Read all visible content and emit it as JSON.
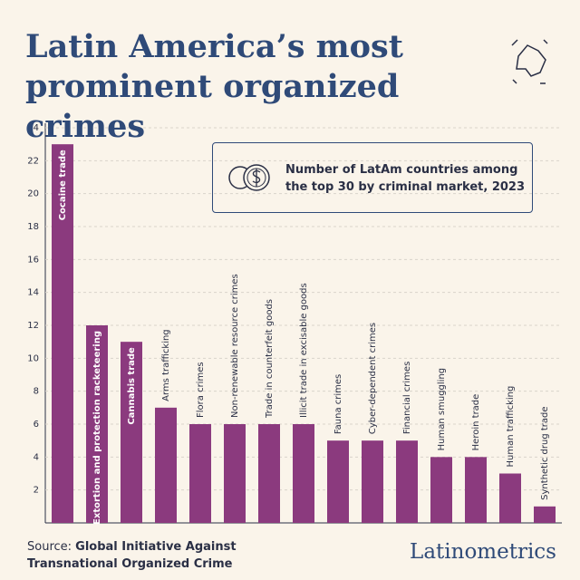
{
  "chart_data": {
    "type": "bar",
    "title": "Latin America’s most prominent organized crimes",
    "legend_text": "Number of LatAm countries among the top 30 by criminal market, 2023",
    "categories": [
      "Cocaine trade",
      "Extortion and protection racketeering",
      "Cannabis trade",
      "Arms trafficking",
      "Flora crimes",
      "Non-renewable resource crimes",
      "Trade in counterfeit goods",
      "Illicit trade in excisable goods",
      "Fauna crimes",
      "Cyber-dependent crimes",
      "Financial crimes",
      "Human smuggling",
      "Heroin trade",
      "Human trafficking",
      "Synthetic drug trade"
    ],
    "values": [
      23,
      12,
      11,
      7,
      6,
      6,
      6,
      6,
      5,
      5,
      5,
      4,
      4,
      3,
      1
    ],
    "color": "#8b3a7e",
    "ylim": [
      0,
      24
    ],
    "yticks": [
      2,
      4,
      6,
      8,
      10,
      12,
      14,
      16,
      18,
      20,
      22,
      24
    ],
    "grid": true,
    "source_label": "Source:",
    "source": "Global Initiative Against Transnational Organized Crime",
    "brand": "Latinometrics"
  }
}
